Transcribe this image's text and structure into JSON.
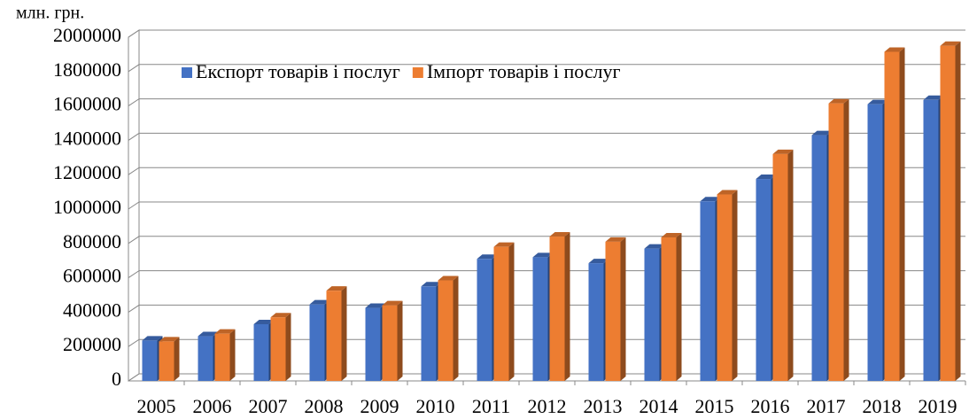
{
  "chart_data": {
    "type": "bar3d",
    "y_label": "млн. грн.",
    "categories": [
      "2005",
      "2006",
      "2007",
      "2008",
      "2009",
      "2010",
      "2011",
      "2012",
      "2013",
      "2014",
      "2015",
      "2016",
      "2017",
      "2018",
      "2019"
    ],
    "series": [
      {
        "name": "Експорт товарів і послуг",
        "color": "#4472c4",
        "values": [
          235000,
          260000,
          330000,
          445000,
          425000,
          550000,
          710000,
          720000,
          685000,
          770000,
          1045000,
          1175000,
          1430000,
          1610000,
          1635000
        ]
      },
      {
        "name": "Імпорт товарів і послуг",
        "color": "#ed7d31",
        "values": [
          230000,
          275000,
          370000,
          525000,
          440000,
          585000,
          780000,
          840000,
          810000,
          835000,
          1085000,
          1320000,
          1615000,
          1915000,
          1950000
        ]
      }
    ],
    "ylim": [
      0,
      2000000
    ],
    "yticks": [
      0,
      200000,
      400000,
      600000,
      800000,
      1000000,
      1200000,
      1400000,
      1600000,
      1800000,
      2000000
    ],
    "grid": true,
    "legend": "top-left"
  }
}
